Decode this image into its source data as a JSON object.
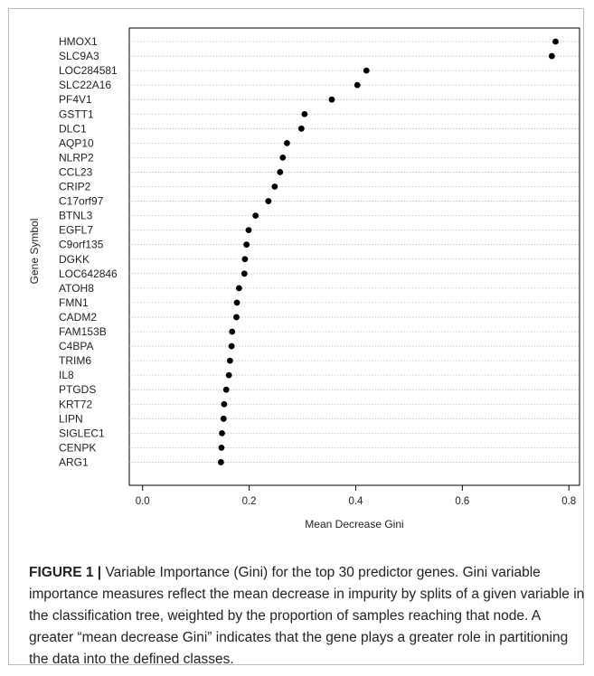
{
  "chart_data": {
    "type": "scatter",
    "title": "",
    "xlabel": "Mean Decrease Gini",
    "ylabel": "Gene Symbol",
    "xlim": [
      -0.025,
      0.82
    ],
    "xticks": [
      "0.0",
      "0.2",
      "0.4",
      "0.6",
      "0.8"
    ],
    "grid": "horizontal dotted",
    "categories": [
      "HMOX1",
      "SLC9A3",
      "LOC284581",
      "SLC22A16",
      "PF4V1",
      "GSTT1",
      "DLC1",
      "AQP10",
      "NLRP2",
      "CCL23",
      "CRIP2",
      "C17orf97",
      "BTNL3",
      "EGFL7",
      "C9orf135",
      "DGKK",
      "LOC642846",
      "ATOH8",
      "FMN1",
      "CADM2",
      "FAM153B",
      "C4BPA",
      "TRIM6",
      "IL8",
      "PTGDS",
      "KRT72",
      "LIPN",
      "SIGLEC1",
      "CENPK",
      "ARG1"
    ],
    "values": [
      0.775,
      0.768,
      0.42,
      0.403,
      0.355,
      0.304,
      0.298,
      0.271,
      0.263,
      0.258,
      0.248,
      0.236,
      0.212,
      0.199,
      0.195,
      0.192,
      0.191,
      0.181,
      0.177,
      0.176,
      0.168,
      0.167,
      0.164,
      0.162,
      0.157,
      0.153,
      0.152,
      0.149,
      0.148,
      0.147
    ]
  },
  "caption": {
    "label": "FIGURE 1 |",
    "text": " Variable Importance (Gini) for the top 30 predictor genes. Gini variable importance measures reflect the mean decrease in impurity by splits of a given variable in the classification tree, weighted by the proportion of samples reaching that node. A greater “mean decrease Gini” indicates that the gene plays a greater role in partitioning the data into the defined classes."
  }
}
